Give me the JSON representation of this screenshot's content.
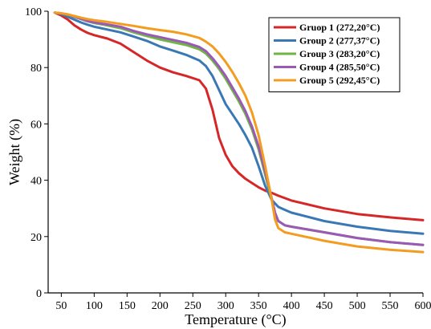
{
  "chart_data": {
    "type": "line",
    "xlabel": "Temperature (°C)",
    "ylabel": "Weight (%)",
    "xlim": [
      30,
      600
    ],
    "ylim": [
      0,
      100
    ],
    "xticks": [
      50,
      100,
      150,
      200,
      250,
      300,
      350,
      400,
      450,
      500,
      550,
      600
    ],
    "yticks": [
      0,
      20,
      40,
      60,
      80,
      100
    ],
    "legend_position": "top-right",
    "grid": false,
    "series": [
      {
        "name": "Gruop 1 (272,20°C)",
        "color": "#d62728",
        "x": [
          40,
          50,
          60,
          70,
          80,
          90,
          100,
          120,
          140,
          160,
          180,
          200,
          220,
          240,
          260,
          270,
          280,
          290,
          300,
          310,
          320,
          330,
          340,
          350,
          360,
          370,
          380,
          400,
          450,
          500,
          550,
          600
        ],
        "y": [
          99.5,
          98.5,
          97,
          95,
          93.5,
          92.3,
          91.5,
          90.3,
          88.5,
          85.5,
          82.5,
          80,
          78.3,
          77,
          75.5,
          72.5,
          65,
          55,
          49,
          45,
          42.5,
          40.5,
          39,
          37.5,
          36.3,
          35.5,
          34.5,
          32.8,
          30,
          28,
          26.8,
          25.8
        ]
      },
      {
        "name": "Group 2 (277,37°C)",
        "color": "#3a78b5",
        "x": [
          40,
          50,
          60,
          70,
          80,
          90,
          100,
          120,
          140,
          160,
          180,
          200,
          220,
          240,
          260,
          270,
          280,
          290,
          300,
          310,
          320,
          330,
          340,
          350,
          360,
          370,
          380,
          390,
          400,
          450,
          500,
          550,
          600
        ],
        "y": [
          99.5,
          99,
          98,
          97,
          96,
          95.2,
          94.5,
          93.5,
          92.5,
          91,
          89.5,
          87.5,
          86,
          84.5,
          82.5,
          80.5,
          77,
          72,
          67,
          63.5,
          60,
          56,
          51.5,
          45,
          38,
          33,
          30.5,
          29.5,
          28.5,
          25.5,
          23.5,
          22,
          21
        ]
      },
      {
        "name": "Group 3 (283,20°C)",
        "color": "#6fb543",
        "x": [
          40,
          50,
          60,
          70,
          80,
          90,
          100,
          120,
          140,
          160,
          180,
          200,
          220,
          240,
          260,
          270,
          280,
          290,
          300,
          310,
          320,
          330,
          340,
          350,
          360,
          370,
          375,
          380,
          390,
          400,
          450,
          500,
          550,
          600
        ],
        "y": [
          99.5,
          99.2,
          98.7,
          98,
          97.2,
          96.4,
          95.8,
          95,
          94,
          92.5,
          91.2,
          90,
          89,
          88,
          86.5,
          85,
          82.5,
          79.5,
          76,
          72,
          68,
          63.5,
          58,
          51,
          42,
          33,
          28,
          25.5,
          24,
          23.5,
          21.5,
          19.5,
          18,
          17
        ]
      },
      {
        "name": "Group 4 (285,50°C)",
        "color": "#9b59b6",
        "x": [
          40,
          50,
          60,
          70,
          80,
          90,
          100,
          120,
          140,
          160,
          180,
          200,
          220,
          240,
          260,
          270,
          280,
          290,
          300,
          310,
          320,
          330,
          340,
          350,
          360,
          370,
          375,
          380,
          390,
          400,
          450,
          500,
          550,
          600
        ],
        "y": [
          99.5,
          99.2,
          98.8,
          98.1,
          97.3,
          96.5,
          96,
          95.3,
          94.5,
          93,
          91.8,
          90.8,
          89.8,
          88.8,
          87.3,
          85.8,
          83.3,
          80.3,
          77,
          73,
          69,
          64.5,
          59,
          52,
          43,
          33.5,
          28.5,
          25.5,
          24,
          23.5,
          21.5,
          19.5,
          18,
          17
        ]
      },
      {
        "name": "Group 5 (292,45°C)",
        "color": "#f39c1f",
        "x": [
          40,
          50,
          60,
          70,
          80,
          90,
          100,
          120,
          140,
          160,
          180,
          200,
          220,
          240,
          260,
          270,
          280,
          290,
          300,
          310,
          320,
          330,
          340,
          350,
          360,
          370,
          375,
          380,
          390,
          400,
          450,
          500,
          550,
          600
        ],
        "y": [
          99.5,
          99.3,
          98.9,
          98.3,
          97.7,
          97.2,
          96.8,
          96.2,
          95.5,
          94.8,
          94,
          93.3,
          92.7,
          91.8,
          90.5,
          89.2,
          87.5,
          85,
          82,
          78.5,
          74.5,
          70,
          64,
          56,
          45,
          33,
          26,
          23,
          21.5,
          21,
          18.5,
          16.5,
          15.3,
          14.5
        ]
      }
    ]
  }
}
